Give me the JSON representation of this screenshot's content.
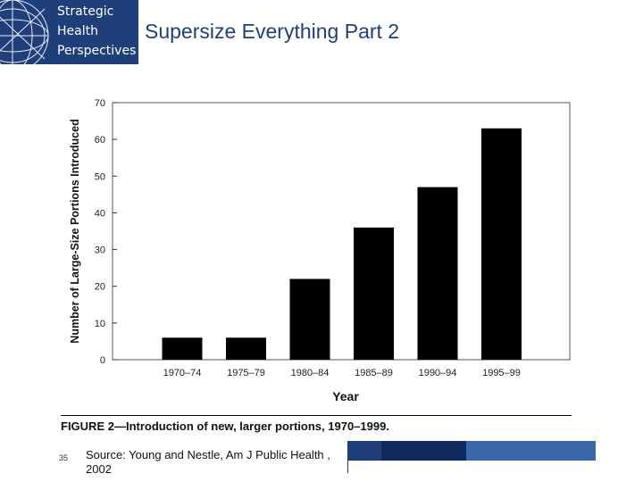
{
  "logo": {
    "lines": [
      "Strategic",
      "Health",
      "Perspectives"
    ]
  },
  "slide": {
    "title": "Supersize Everything Part 2",
    "page_number": "35",
    "source": "Source: Young and Nestle, Am J Public Health , 2002"
  },
  "colors": {
    "brand": "#1f3f7a",
    "bar": "#000000",
    "footer_dark": "#1f3f7a",
    "footer_mid": "#3a66aa"
  },
  "chart_data": {
    "type": "bar",
    "categories": [
      "1970–74",
      "1975–79",
      "1980–84",
      "1985–89",
      "1990–94",
      "1995–99"
    ],
    "values": [
      6,
      6,
      22,
      36,
      47,
      63
    ],
    "xlabel": "Year",
    "ylabel": "Number of Large-Size Portions Introduced",
    "ylim": [
      0,
      70
    ],
    "yticks": [
      0,
      10,
      20,
      30,
      40,
      50,
      60,
      70
    ],
    "grid": false,
    "caption": "FIGURE 2—Introduction of new, larger portions, 1970–1999."
  }
}
